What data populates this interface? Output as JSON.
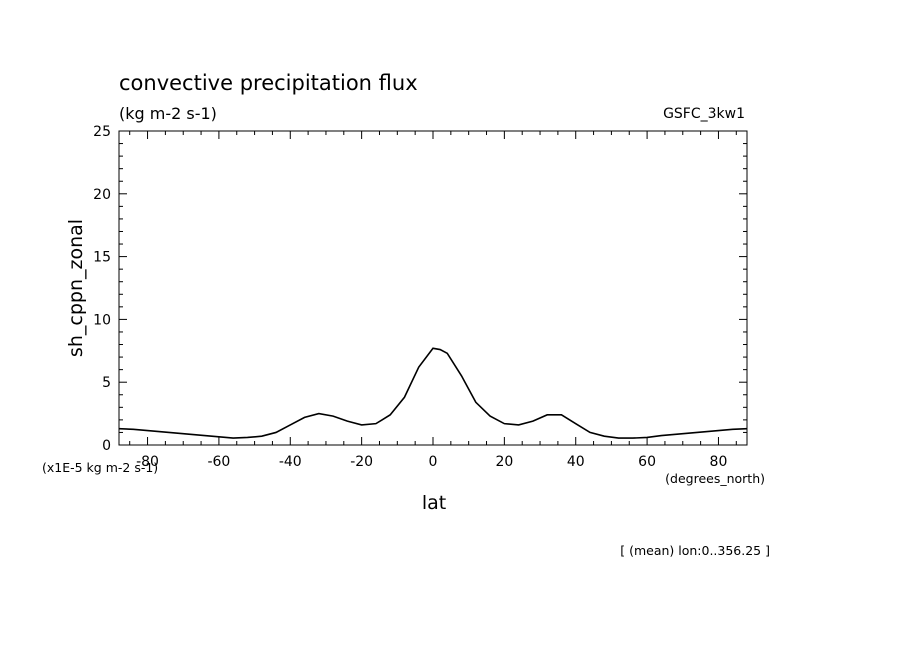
{
  "chart_data": {
    "type": "line",
    "title": "convective precipitation flux",
    "subtitle": "(kg m-2 s-1)",
    "source_label": "GSFC_3kw1",
    "ylabel": "sh_cppn_zonal",
    "xlabel": "lat",
    "y_unit_note": "(x1E-5 kg m-2 s-1)",
    "x_unit_note": "(degrees_north)",
    "footnote": "[ (mean) lon:0..356.25 ]",
    "xlim": [
      -88,
      88
    ],
    "ylim": [
      0,
      25
    ],
    "x_ticks": [
      -80,
      -60,
      -40,
      -20,
      0,
      20,
      40,
      60,
      80
    ],
    "x_tick_labels": [
      "-80",
      "-60",
      "-40",
      "-20",
      "0",
      "20",
      "40",
      "60",
      "80"
    ],
    "y_ticks": [
      0,
      5,
      10,
      15,
      20,
      25
    ],
    "y_tick_labels": [
      "0",
      "5",
      "10",
      "15",
      "20",
      "25"
    ],
    "grid": false,
    "series": [
      {
        "x": [
          -88,
          -84,
          -80,
          -76,
          -72,
          -68,
          -64,
          -60,
          -56,
          -52,
          -48,
          -44,
          -40,
          -36,
          -32,
          -28,
          -24,
          -20,
          -16,
          -12,
          -8,
          -4,
          0,
          2,
          4,
          8,
          12,
          16,
          20,
          24,
          28,
          32,
          36,
          40,
          44,
          48,
          52,
          56,
          60,
          64,
          68,
          72,
          76,
          80,
          84,
          88
        ],
        "y": [
          1.3,
          1.25,
          1.15,
          1.05,
          0.95,
          0.85,
          0.75,
          0.65,
          0.55,
          0.6,
          0.7,
          1.0,
          1.6,
          2.2,
          2.5,
          2.3,
          1.9,
          1.6,
          1.7,
          2.4,
          3.8,
          6.2,
          7.7,
          7.6,
          7.3,
          5.5,
          3.4,
          2.3,
          1.7,
          1.6,
          1.9,
          2.4,
          2.4,
          1.7,
          1.0,
          0.7,
          0.55,
          0.55,
          0.6,
          0.75,
          0.85,
          0.95,
          1.05,
          1.15,
          1.25,
          1.3
        ],
        "color": "#000000"
      }
    ]
  }
}
